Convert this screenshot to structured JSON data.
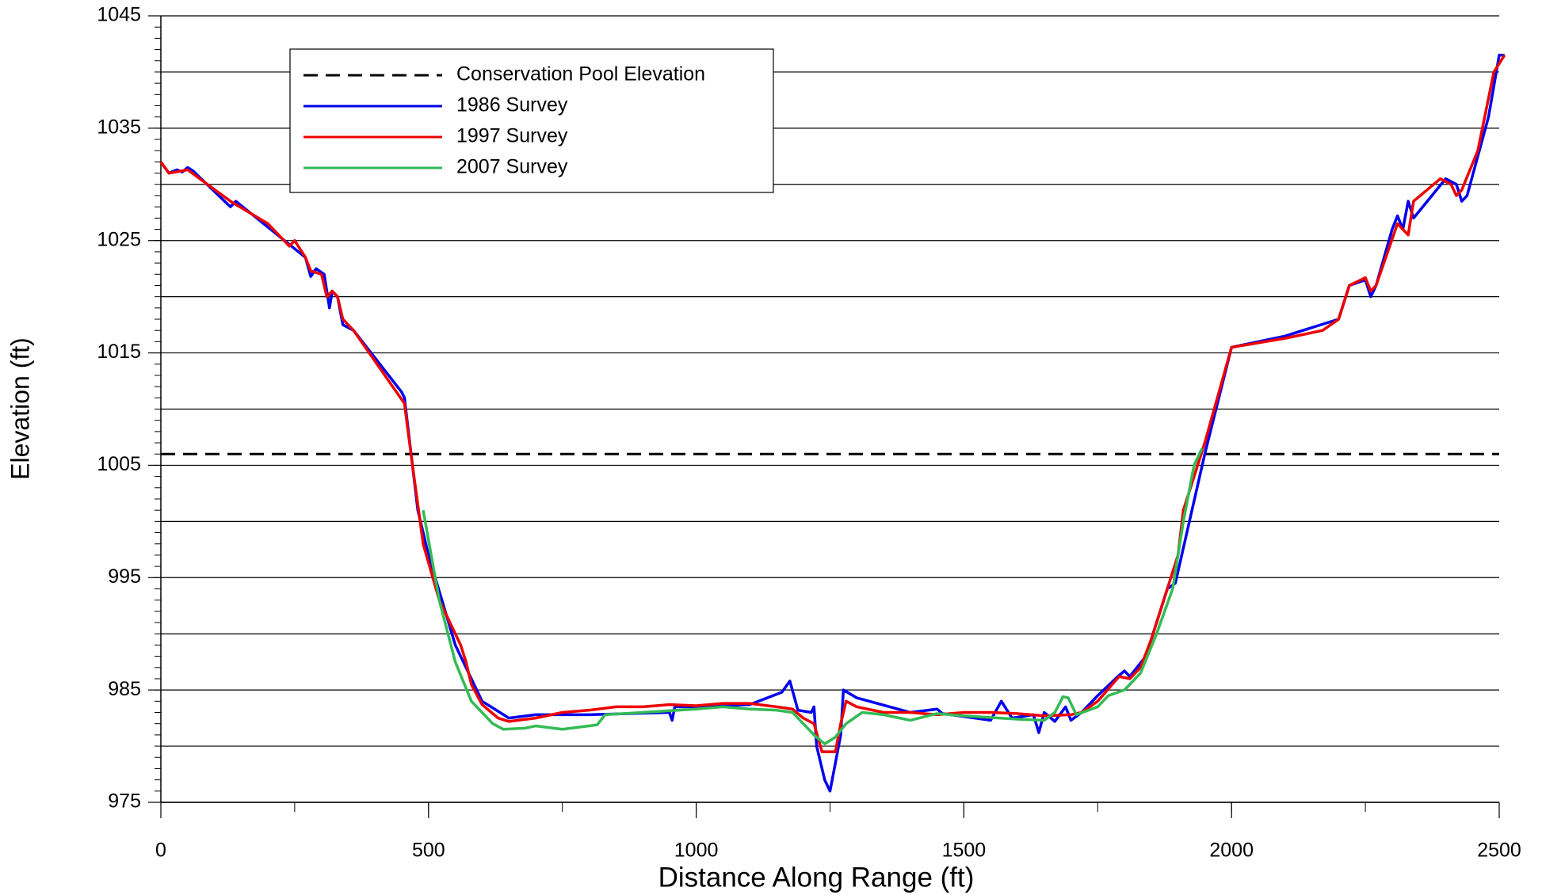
{
  "chart_data": {
    "type": "line",
    "x_label": "Distance Along Range (ft)",
    "y_label": "Elevation (ft)",
    "xlim": [
      0,
      2500
    ],
    "xticks": [
      0,
      500,
      1000,
      1500,
      2000,
      2500
    ],
    "ylim": [
      975,
      1045
    ],
    "yticks": [
      975,
      985,
      995,
      1005,
      1015,
      1025,
      1035,
      1045
    ],
    "ygrid": [
      975,
      980,
      985,
      990,
      995,
      1000,
      1005,
      1010,
      1015,
      1020,
      1025,
      1030,
      1035,
      1040,
      1045
    ],
    "x_minor_step": 250,
    "y_minor_step": 1,
    "legend": "upper left",
    "series": [
      {
        "name": "Conservation Pool Elevation",
        "color": "#000000",
        "dash": true,
        "x": [
          0,
          2500
        ],
        "values": [
          1006,
          1006
        ]
      },
      {
        "name": "1986 Survey",
        "color": "#0000ee",
        "x": [
          0,
          15,
          30,
          40,
          50,
          60,
          130,
          140,
          270,
          280,
          290,
          305,
          315,
          320,
          330,
          340,
          360,
          450,
          455,
          480,
          500,
          550,
          600,
          650,
          700,
          800,
          950,
          955,
          960,
          1000,
          1100,
          1160,
          1175,
          1190,
          1215,
          1220,
          1225,
          1240,
          1250,
          1260,
          1270,
          1275,
          1300,
          1400,
          1450,
          1460,
          1550,
          1570,
          1590,
          1630,
          1640,
          1650,
          1670,
          1690,
          1700,
          1720,
          1750,
          1790,
          1800,
          1810,
          1840,
          1880,
          1895,
          1950,
          2000,
          2100,
          2200,
          2220,
          2250,
          2260,
          2270,
          2300,
          2310,
          2320,
          2330,
          2340,
          2400,
          2420,
          2430,
          2440,
          2480,
          2500,
          2510
        ],
        "values": [
          1032,
          1031,
          1031.3,
          1031.1,
          1031.5,
          1031.2,
          1028,
          1028.5,
          1023.5,
          1021.8,
          1022.5,
          1022,
          1019,
          1020.5,
          1020,
          1017.5,
          1017,
          1011.5,
          1011,
          1001,
          997,
          989,
          984,
          982.5,
          982.8,
          982.8,
          983,
          982.3,
          983.5,
          983.5,
          983.7,
          984.8,
          985.8,
          983.2,
          983,
          983.5,
          980,
          977,
          976,
          978.5,
          981,
          985,
          984.3,
          983,
          983.3,
          982.9,
          982.3,
          984,
          982.5,
          982.8,
          981.2,
          983,
          982.2,
          983.5,
          982.3,
          983,
          984.5,
          986.3,
          986.7,
          986.2,
          988,
          994,
          994.5,
          1006,
          1015.5,
          1016.5,
          1018,
          1021,
          1021.5,
          1020,
          1021,
          1026,
          1027.2,
          1026,
          1028.5,
          1027,
          1030.5,
          1030,
          1028.5,
          1029,
          1036,
          1041.5,
          1041.5
        ]
      },
      {
        "name": "1997 Survey",
        "color": "#ee0000",
        "x": [
          0,
          15,
          50,
          130,
          200,
          240,
          250,
          270,
          280,
          300,
          310,
          320,
          330,
          340,
          360,
          455,
          470,
          490,
          520,
          560,
          570,
          580,
          600,
          630,
          650,
          700,
          750,
          800,
          850,
          900,
          950,
          1000,
          1050,
          1100,
          1150,
          1180,
          1200,
          1220,
          1235,
          1260,
          1270,
          1280,
          1300,
          1350,
          1400,
          1450,
          1500,
          1550,
          1600,
          1650,
          1700,
          1720,
          1750,
          1790,
          1810,
          1830,
          1850,
          1880,
          1900,
          1910,
          1950,
          2000,
          2100,
          2170,
          2200,
          2220,
          2250,
          2260,
          2270,
          2310,
          2320,
          2330,
          2340,
          2390,
          2410,
          2420,
          2430,
          2460,
          2490,
          2510
        ],
        "values": [
          1032,
          1031,
          1031.3,
          1028.5,
          1026.5,
          1024.5,
          1025,
          1023.5,
          1022.3,
          1022,
          1020,
          1020.5,
          1020,
          1018,
          1017,
          1010.5,
          1005,
          998,
          993,
          989,
          987.5,
          985.5,
          983.7,
          982.5,
          982.2,
          982.5,
          983,
          983.2,
          983.5,
          983.5,
          983.7,
          983.6,
          983.8,
          983.8,
          983.5,
          983.3,
          982.5,
          982,
          979.5,
          979.5,
          982,
          984,
          983.5,
          983,
          983,
          982.8,
          983,
          983,
          982.9,
          982.7,
          982.8,
          983,
          984,
          986.2,
          986,
          987,
          989.5,
          994,
          997,
          1001,
          1007,
          1015.5,
          1016.3,
          1017,
          1018,
          1021,
          1021.7,
          1020.5,
          1021,
          1026.5,
          1026,
          1025.5,
          1028.5,
          1030.5,
          1030,
          1029,
          1029.5,
          1033,
          1040,
          1041.5
        ]
      },
      {
        "name": "2007 Survey",
        "color": "#33bb55",
        "x": [
          490,
          520,
          550,
          580,
          620,
          640,
          680,
          700,
          750,
          800,
          815,
          830,
          900,
          1000,
          1050,
          1100,
          1150,
          1180,
          1200,
          1220,
          1240,
          1260,
          1280,
          1310,
          1350,
          1400,
          1450,
          1500,
          1600,
          1650,
          1670,
          1685,
          1695,
          1710,
          1750,
          1770,
          1800,
          1830,
          1860,
          1890,
          1910,
          1930,
          1945
        ],
        "values": [
          1001,
          993,
          987.5,
          984,
          982,
          981.5,
          981.6,
          981.8,
          981.5,
          981.8,
          981.9,
          982.8,
          983,
          983.3,
          983.5,
          983.3,
          983.2,
          983,
          982,
          981,
          980.2,
          980.8,
          982,
          983,
          982.8,
          982.3,
          982.9,
          982.7,
          982.4,
          982.3,
          983,
          984.4,
          984.3,
          982.8,
          983.5,
          984.5,
          985,
          986.5,
          990,
          994,
          1000,
          1005,
          1006.5
        ]
      }
    ]
  }
}
